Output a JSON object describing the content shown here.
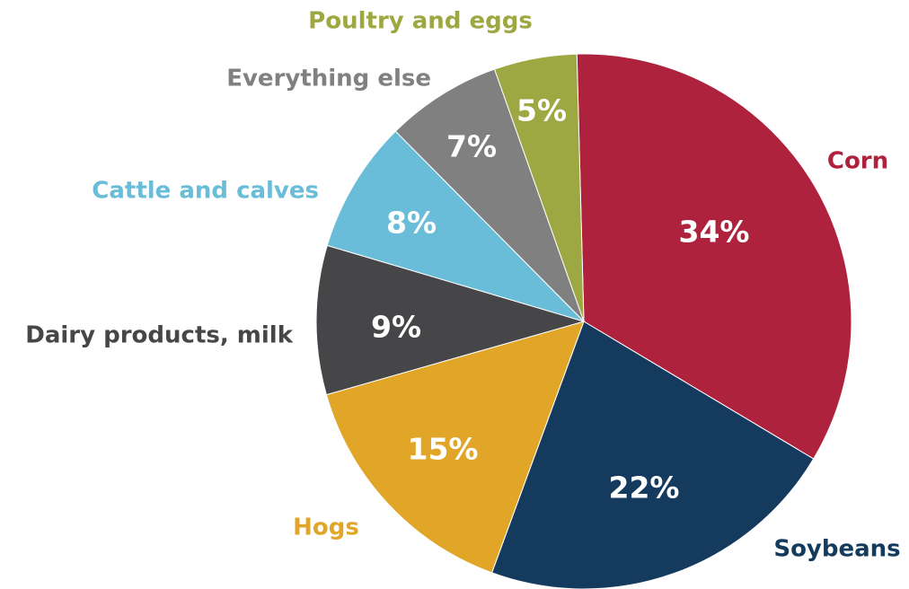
{
  "chart_data": {
    "type": "pie",
    "title": "",
    "start_angle_deg": -1.5,
    "direction": "clockwise",
    "slices": [
      {
        "label": "Corn",
        "value": 34,
        "value_label": "34%",
        "color": "#AE223D",
        "label_color": "#AE223D"
      },
      {
        "label": "Soybeans",
        "value": 22,
        "value_label": "22%",
        "color": "#143A5E",
        "label_color": "#143A5E"
      },
      {
        "label": "Hogs",
        "value": 15,
        "value_label": "15%",
        "color": "#E1A627",
        "label_color": "#E1A627"
      },
      {
        "label": "Dairy products, milk",
        "value": 9,
        "value_label": "9%",
        "color": "#464547",
        "label_color": "#464547"
      },
      {
        "label": "Cattle and calves",
        "value": 8,
        "value_label": "8%",
        "color": "#69BDD8",
        "label_color": "#69BDD8"
      },
      {
        "label": "Everything else",
        "value": 7,
        "value_label": "7%",
        "color": "#7F807F",
        "label_color": "#7F807F"
      },
      {
        "label": "Poultry and eggs",
        "value": 5,
        "value_label": "5%",
        "color": "#9EA843",
        "label_color": "#9EA843"
      }
    ]
  }
}
